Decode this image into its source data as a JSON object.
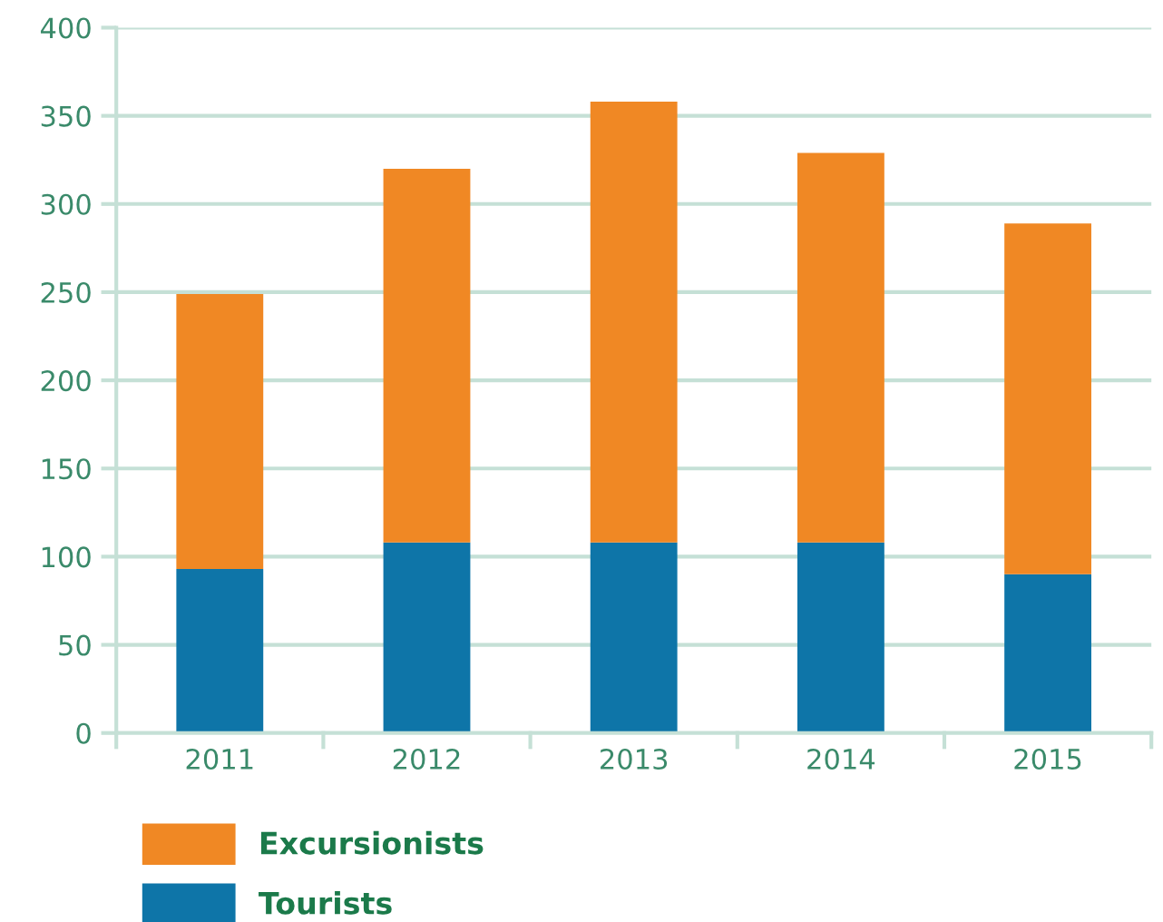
{
  "chart_data": {
    "type": "bar",
    "stacked": true,
    "categories": [
      "2011",
      "2012",
      "2013",
      "2014",
      "2015"
    ],
    "series": [
      {
        "name": "Tourists",
        "color": "#0e75a8",
        "values": [
          93,
          108,
          108,
          108,
          90
        ]
      },
      {
        "name": "Excursionists",
        "color": "#f08824",
        "values": [
          156,
          212,
          250,
          221,
          199
        ]
      }
    ],
    "ylim": [
      0,
      400
    ],
    "yticks": [
      0,
      50,
      100,
      150,
      200,
      250,
      300,
      350,
      400
    ],
    "grid": "y",
    "legend": "bottom left"
  }
}
